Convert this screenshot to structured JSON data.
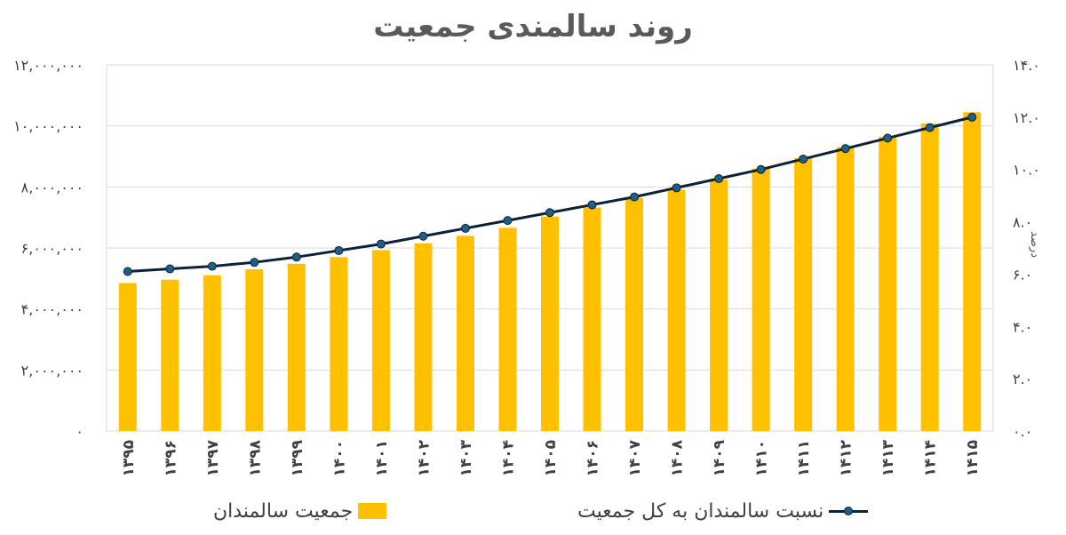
{
  "chart_data": {
    "type": "bar+line",
    "title": "روند سالمندی جمعیت",
    "categories": [
      "۱۳۹۵",
      "۱۳۹۶",
      "۱۳۹۷",
      "۱۳۹۸",
      "۱۳۹۹",
      "۱۴۰۰",
      "۱۴۰۱",
      "۱۴۰۲",
      "۱۴۰۳",
      "۱۴۰۴",
      "۱۴۰۵",
      "۱۴۰۶",
      "۱۴۰۷",
      "۱۴۰۸",
      "۱۴۰۹",
      "۱۴۱۰",
      "۱۴۱۱",
      "۱۴۱۲",
      "۱۴۱۳",
      "۱۴۱۴",
      "۱۴۱۵"
    ],
    "series": [
      {
        "name": "جمعیت  سالمندان",
        "kind": "bar",
        "axis": "left",
        "color": "#FFC000",
        "values": [
          4850000,
          4960000,
          5100000,
          5300000,
          5480000,
          5700000,
          5930000,
          6150000,
          6400000,
          6660000,
          7030000,
          7330000,
          7640000,
          7900000,
          8240000,
          8600000,
          8950000,
          9300000,
          9650000,
          10080000,
          10450000
        ]
      },
      {
        "name": "نسبت سالمندان به کل جمعیت",
        "kind": "line",
        "axis": "right",
        "color": "#0d2238",
        "marker_color": "#1f5f86",
        "values": [
          6.1,
          6.2,
          6.3,
          6.45,
          6.65,
          6.9,
          7.15,
          7.45,
          7.75,
          8.05,
          8.35,
          8.65,
          8.95,
          9.3,
          9.65,
          10.0,
          10.4,
          10.8,
          11.2,
          11.6,
          12.0
        ]
      }
    ],
    "ylim_left": [
      0,
      12000000
    ],
    "yticks_left": [
      "۰",
      "۲,۰۰۰,۰۰۰",
      "۴,۰۰۰,۰۰۰",
      "۶,۰۰۰,۰۰۰",
      "۸,۰۰۰,۰۰۰",
      "۱۰,۰۰۰,۰۰۰",
      "۱۲,۰۰۰,۰۰۰"
    ],
    "ylim_right": [
      0,
      14
    ],
    "yticks_right": [
      "۰.۰",
      "۲.۰",
      "۴.۰",
      "۶.۰",
      "۸.۰",
      "۱۰.۰",
      "۱۲.۰",
      "۱۴.۰"
    ],
    "ylabel_right": "درصد",
    "grid": true,
    "legend_position": "bottom"
  }
}
